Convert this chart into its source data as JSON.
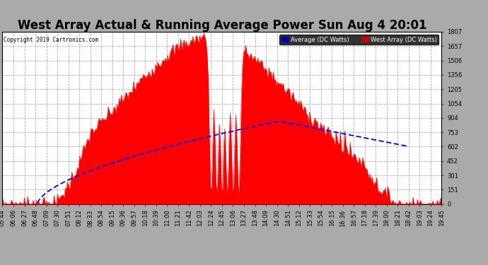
{
  "title": "West Array Actual & Running Average Power Sun Aug 4 20:01",
  "copyright": "Copyright 2019 Cartronics.com",
  "legend_labels": [
    "Average (DC Watts)",
    "West Array (DC Watts)"
  ],
  "legend_avg_color": "#0000cc",
  "legend_west_color": "#cc0000",
  "legend_avg_bg": "#0000cc",
  "legend_west_bg": "#cc0000",
  "ymin": 0.0,
  "ymax": 1807.4,
  "yticks": [
    0.0,
    150.6,
    301.2,
    451.8,
    602.5,
    753.1,
    903.7,
    1054.3,
    1204.9,
    1355.5,
    1506.2,
    1656.8,
    1807.4
  ],
  "fig_bg_color": "#aaaaaa",
  "plot_bg_color": "#ffffff",
  "fill_color": "#ff0000",
  "avg_line_color": "#0000ff",
  "grid_color": "#aaaaaa",
  "title_fontsize": 12,
  "tick_fontsize": 6
}
